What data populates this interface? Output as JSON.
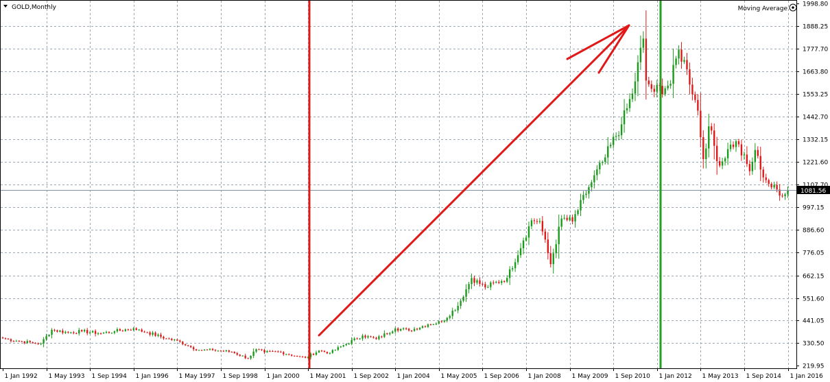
{
  "chart_data": {
    "type": "candlestick",
    "title": "GOLD,Monthly",
    "indicator_label": "Moving Average",
    "current_price_label": "1081.56",
    "ylim": [
      219.95,
      1998.8
    ],
    "y_ticks": [
      "1998.80",
      "1888.25",
      "1777.70",
      "1663.80",
      "1553.25",
      "1442.70",
      "1332.15",
      "1221.60",
      "1107.70",
      "997.15",
      "886.60",
      "776.05",
      "662.15",
      "551.60",
      "441.05",
      "330.50",
      "219.95"
    ],
    "x_ticks": [
      "1 Jan 1992",
      "1 May 1993",
      "1 Sep 1994",
      "1 Jan 1996",
      "1 May 1997",
      "1 Sep 1998",
      "1 Jan 2000",
      "1 May 2001",
      "1 Sep 2002",
      "1 Jan 2004",
      "1 May 2005",
      "1 Sep 2006",
      "1 Jan 2008",
      "1 May 2009",
      "1 Sep 2010",
      "1 Jan 2012",
      "1 May 2013",
      "1 Sep 2014",
      "1 Jan 2016"
    ],
    "up_color": "#1a9a1a",
    "down_color": "#dd1a1a",
    "grid": true,
    "annotations": {
      "red_vertical_line": "2001",
      "green_vertical_line": "Sep 2011",
      "horizontal_price_line": 1081.56,
      "trend_arrow": {
        "from": [
          "Aug 2001",
          270
        ],
        "to": [
          "Jul 2011",
          1890
        ]
      }
    },
    "close_anchors": [
      [
        "1992-01",
        354
      ],
      [
        "1992-06",
        341
      ],
      [
        "1993-01",
        330
      ],
      [
        "1993-03",
        328
      ],
      [
        "1993-07",
        395
      ],
      [
        "1994-01",
        382
      ],
      [
        "1994-06",
        388
      ],
      [
        "1995-01",
        378
      ],
      [
        "1995-06",
        388
      ],
      [
        "1996-01",
        403
      ],
      [
        "1996-02",
        395
      ],
      [
        "1996-06",
        383
      ],
      [
        "1997-01",
        353
      ],
      [
        "1997-06",
        337
      ],
      [
        "1997-10",
        310
      ],
      [
        "1998-01",
        296
      ],
      [
        "1998-06",
        296
      ],
      [
        "1999-01",
        287
      ],
      [
        "1999-07",
        255
      ],
      [
        "1999-10",
        300
      ],
      [
        "2000-01",
        285
      ],
      [
        "2000-06",
        288
      ],
      [
        "2001-01",
        265
      ],
      [
        "2001-04",
        258
      ],
      [
        "2001-09",
        293
      ],
      [
        "2002-01",
        282
      ],
      [
        "2002-06",
        320
      ],
      [
        "2003-01",
        367
      ],
      [
        "2003-06",
        350
      ],
      [
        "2004-01",
        402
      ],
      [
        "2004-06",
        392
      ],
      [
        "2005-01",
        422
      ],
      [
        "2005-06",
        435
      ],
      [
        "2005-12",
        513
      ],
      [
        "2006-05",
        650
      ],
      [
        "2006-10",
        604
      ],
      [
        "2007-06",
        650
      ],
      [
        "2007-12",
        834
      ],
      [
        "2008-03",
        933
      ],
      [
        "2008-06",
        930
      ],
      [
        "2008-10",
        718
      ],
      [
        "2009-02",
        942
      ],
      [
        "2009-06",
        928
      ],
      [
        "2009-12",
        1096
      ],
      [
        "2010-06",
        1242
      ],
      [
        "2010-12",
        1405
      ],
      [
        "2011-04",
        1556
      ],
      [
        "2011-08",
        1826
      ],
      [
        "2011-09",
        1620
      ],
      [
        "2011-12",
        1565
      ],
      [
        "2012-06",
        1604
      ],
      [
        "2012-09",
        1772
      ],
      [
        "2012-12",
        1675
      ],
      [
        "2013-04",
        1472
      ],
      [
        "2013-06",
        1234
      ],
      [
        "2013-08",
        1395
      ],
      [
        "2013-12",
        1202
      ],
      [
        "2014-03",
        1283
      ],
      [
        "2014-06",
        1322
      ],
      [
        "2014-11",
        1175
      ],
      [
        "2015-01",
        1279
      ],
      [
        "2015-03",
        1183
      ],
      [
        "2015-07",
        1095
      ],
      [
        "2015-12",
        1061
      ],
      [
        "2016-01",
        1081.56
      ]
    ]
  }
}
